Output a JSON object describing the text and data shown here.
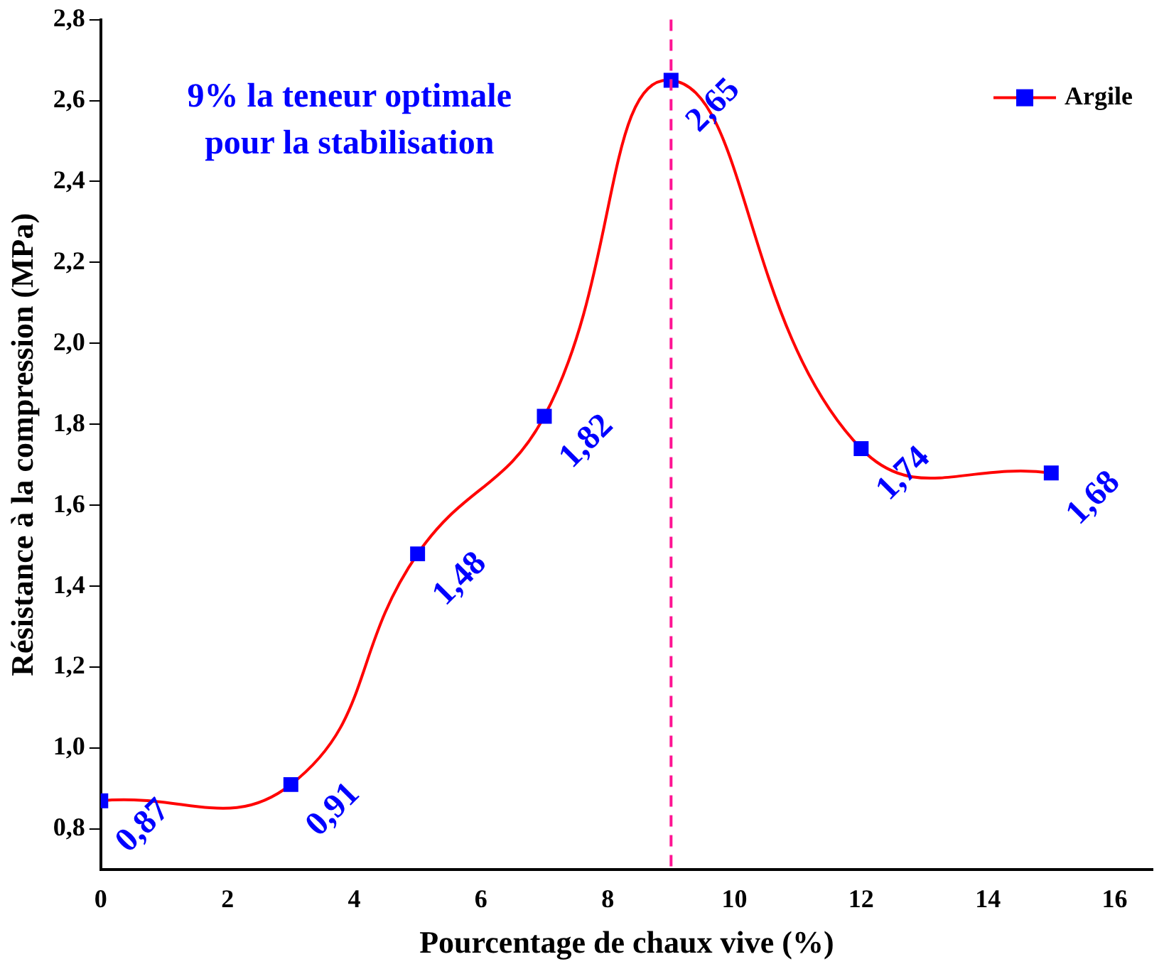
{
  "chart_data": {
    "type": "line",
    "xlabel": "Pourcentage de chaux vive (%)",
    "ylabel": "Résistance à la compression (MPa)",
    "x": [
      0,
      3,
      5,
      7,
      9,
      12,
      15
    ],
    "series": [
      {
        "name": "Argile",
        "color": "#ff0000",
        "values": [
          0.87,
          0.91,
          1.48,
          1.82,
          2.65,
          1.74,
          1.68
        ],
        "value_labels": [
          "0,87",
          "0,91",
          "1,48",
          "1,82",
          "2,65",
          "1,74",
          "1,68"
        ]
      }
    ],
    "xlim": [
      0,
      16.6
    ],
    "xticks": [
      0,
      2,
      4,
      6,
      8,
      10,
      12,
      14,
      16
    ],
    "ylim": [
      0.7,
      2.8
    ],
    "yticks": [
      {
        "value": 0.8,
        "label": "0,8"
      },
      {
        "value": 1.0,
        "label": "1,0"
      },
      {
        "value": 1.2,
        "label": "1,2"
      },
      {
        "value": 1.4,
        "label": "1,4"
      },
      {
        "value": 1.6,
        "label": "1,6"
      },
      {
        "value": 1.8,
        "label": "1,8"
      },
      {
        "value": 2.0,
        "label": "2,0"
      },
      {
        "value": 2.2,
        "label": "2,2"
      },
      {
        "value": 2.4,
        "label": "2,4"
      },
      {
        "value": 2.6,
        "label": "2,6"
      },
      {
        "value": 2.8,
        "label": "2,8"
      }
    ],
    "ref_lines": [
      {
        "axis": "x",
        "value": 9,
        "color": "#ff1493",
        "line_style": "dashed"
      }
    ],
    "annotations": [
      "9% la teneur optimale\npour la stabilisation"
    ],
    "marker": "square",
    "line_style": "solid",
    "legend": "top right",
    "grid": false
  }
}
